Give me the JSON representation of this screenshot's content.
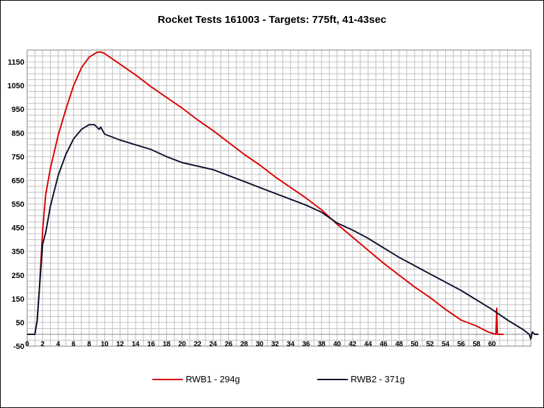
{
  "chart_data": {
    "type": "line",
    "title": "Rocket Tests 161003 - Targets: 775ft, 41-43sec",
    "xlabel": "",
    "ylabel": "",
    "xlim": [
      0,
      65
    ],
    "ylim": [
      -50,
      1200
    ],
    "x_ticks": [
      0,
      2,
      4,
      6,
      8,
      10,
      12,
      14,
      16,
      18,
      20,
      22,
      24,
      26,
      28,
      30,
      32,
      34,
      36,
      38,
      40,
      42,
      44,
      46,
      48,
      50,
      52,
      54,
      56,
      58,
      60
    ],
    "y_ticks": [
      -50,
      50,
      150,
      250,
      350,
      450,
      550,
      650,
      750,
      850,
      950,
      1050,
      1150
    ],
    "grid": true,
    "legend_position": "bottom",
    "series": [
      {
        "name": "RWB1 - 294g",
        "color": "#dd0000",
        "points": [
          [
            0,
            0
          ],
          [
            1,
            0
          ],
          [
            1.3,
            60
          ],
          [
            1.6,
            200
          ],
          [
            2,
            440
          ],
          [
            2.4,
            590
          ],
          [
            3,
            700
          ],
          [
            4,
            840
          ],
          [
            5,
            950
          ],
          [
            6,
            1050
          ],
          [
            7,
            1125
          ],
          [
            8,
            1170
          ],
          [
            9,
            1190
          ],
          [
            9.5,
            1192
          ],
          [
            10,
            1185
          ],
          [
            12,
            1140
          ],
          [
            14,
            1095
          ],
          [
            16,
            1045
          ],
          [
            18,
            1000
          ],
          [
            20,
            955
          ],
          [
            22,
            905
          ],
          [
            24,
            860
          ],
          [
            26,
            810
          ],
          [
            28,
            760
          ],
          [
            30,
            715
          ],
          [
            32,
            665
          ],
          [
            34,
            620
          ],
          [
            36,
            575
          ],
          [
            38,
            525
          ],
          [
            40,
            465
          ],
          [
            42,
            410
          ],
          [
            44,
            355
          ],
          [
            46,
            300
          ],
          [
            48,
            250
          ],
          [
            50,
            200
          ],
          [
            52,
            155
          ],
          [
            54,
            105
          ],
          [
            56,
            60
          ],
          [
            58,
            35
          ],
          [
            59.5,
            10
          ],
          [
            60.5,
            0
          ],
          [
            60.6,
            110
          ],
          [
            60.7,
            0
          ],
          [
            61.5,
            0
          ]
        ]
      },
      {
        "name": "RWB2 - 371g",
        "color": "#101030",
        "points": [
          [
            0,
            0
          ],
          [
            1,
            0
          ],
          [
            1.3,
            60
          ],
          [
            1.6,
            200
          ],
          [
            2,
            380
          ],
          [
            2.4,
            430
          ],
          [
            3,
            540
          ],
          [
            4,
            670
          ],
          [
            5,
            760
          ],
          [
            6,
            825
          ],
          [
            7,
            865
          ],
          [
            8,
            885
          ],
          [
            8.7,
            885
          ],
          [
            9,
            875
          ],
          [
            9.3,
            865
          ],
          [
            9.5,
            875
          ],
          [
            10,
            845
          ],
          [
            12,
            820
          ],
          [
            14,
            800
          ],
          [
            16,
            780
          ],
          [
            18,
            750
          ],
          [
            20,
            725
          ],
          [
            22,
            710
          ],
          [
            24,
            695
          ],
          [
            26,
            670
          ],
          [
            28,
            645
          ],
          [
            30,
            620
          ],
          [
            32,
            595
          ],
          [
            34,
            570
          ],
          [
            36,
            545
          ],
          [
            38,
            515
          ],
          [
            40,
            470
          ],
          [
            42,
            440
          ],
          [
            44,
            405
          ],
          [
            46,
            365
          ],
          [
            48,
            325
          ],
          [
            50,
            290
          ],
          [
            52,
            255
          ],
          [
            54,
            220
          ],
          [
            56,
            185
          ],
          [
            58,
            145
          ],
          [
            60,
            105
          ],
          [
            62,
            60
          ],
          [
            64,
            20
          ],
          [
            64.8,
            0
          ],
          [
            65,
            -20
          ],
          [
            65.2,
            10
          ],
          [
            65.5,
            0
          ],
          [
            66,
            0
          ]
        ]
      }
    ]
  }
}
